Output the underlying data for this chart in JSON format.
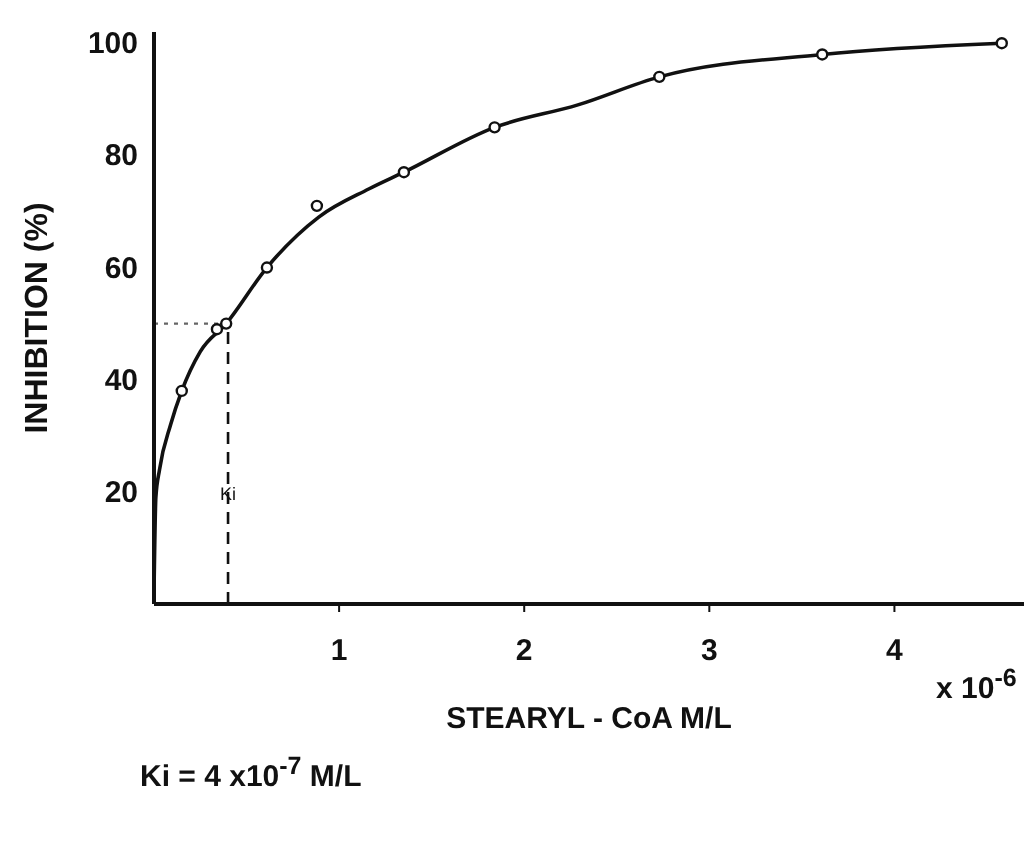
{
  "chart_data": {
    "type": "scatter",
    "xlabel": "STEARYL - CoA  M/L",
    "ylabel": "INHIBITION (%)",
    "xlim": [
      0,
      4.7
    ],
    "xticks": [
      1,
      2,
      3,
      4
    ],
    "ylim": [
      0,
      102
    ],
    "yticks": [
      20,
      40,
      60,
      80,
      100
    ],
    "grid": false,
    "legend": false,
    "series": [
      {
        "color": "#111111",
        "marker": "circle",
        "x": [
          0.15,
          0.34,
          0.39,
          0.61,
          0.88,
          1.35,
          1.84,
          2.73,
          3.61,
          4.58
        ],
        "values": [
          38,
          49,
          50,
          60,
          71,
          77,
          85,
          94,
          98,
          100
        ]
      },
      {
        "type": "line",
        "color": "#111111",
        "marker": "none",
        "line_style": "solid",
        "x": [
          0,
          0.01,
          0.03,
          0.09,
          0.15,
          0.25,
          0.39,
          0.61,
          0.89,
          1.16,
          1.35,
          1.84,
          2.29,
          2.73,
          3.61,
          4.58
        ],
        "values": [
          2,
          19,
          24,
          32,
          38,
          45,
          50,
          60,
          69,
          74,
          77,
          85,
          89,
          94,
          98,
          100
        ]
      }
    ],
    "ref_lines": [
      {
        "axis": "x",
        "value": 0.4,
        "label": "Ki",
        "line_style": "dashed",
        "color": "#111111"
      },
      {
        "axis": "y",
        "value": 50,
        "label": null,
        "line_style": "dotted",
        "color": "#666666"
      }
    ],
    "annotations": [
      "x 10$^{-6}$",
      "Ki = 4 x10$^{-7}$ M/L"
    ]
  }
}
